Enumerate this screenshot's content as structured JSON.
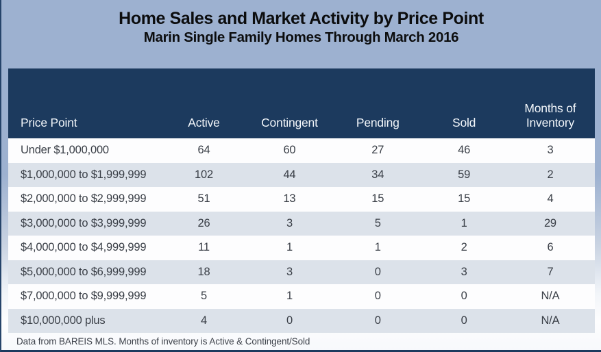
{
  "chart_data": {
    "type": "table",
    "title": "Home Sales and Market Activity by Price Point",
    "subtitle": "Marin Single Family Homes Through March 2016",
    "columns": [
      "Price Point",
      "Active",
      "Contingent",
      "Pending",
      "Sold",
      "Months of Inventory"
    ],
    "rows": [
      [
        "Under $1,000,000",
        "64",
        "60",
        "27",
        "46",
        "3"
      ],
      [
        "$1,000,000 to $1,999,999",
        "102",
        "44",
        "34",
        "59",
        "2"
      ],
      [
        "$2,000,000 to $2,999,999",
        "51",
        "13",
        "15",
        "15",
        "4"
      ],
      [
        "$3,000,000 to $3,999,999",
        "26",
        "3",
        "5",
        "1",
        "29"
      ],
      [
        "$4,000,000 to $4,999,999",
        "11",
        "1",
        "1",
        "2",
        "6"
      ],
      [
        "$5,000,000 to $6,999,999",
        "18",
        "3",
        "0",
        "3",
        "7"
      ],
      [
        "$7,000,000 to $9,999,999",
        "5",
        "1",
        "0",
        "0",
        "N/A"
      ],
      [
        "$10,000,000 plus",
        "4",
        "0",
        "0",
        "0",
        "N/A"
      ]
    ],
    "footnote": "Data from BAREIS MLS. Months of inventory is Active & Contingent/Sold",
    "layout_hints": {
      "striped_rows": true,
      "header_position": "top",
      "first_column_align": "left",
      "value_columns_align": "center"
    },
    "colors": {
      "header_band": "#9db1d0",
      "table_header_bg": "#1c3a5e",
      "table_header_text": "#f2f6fa",
      "row_bg": "#fdfdfe",
      "row_alt_bg": "#dce2ea",
      "body_text": "#393e46",
      "frame_border": "#1c3a5e"
    }
  }
}
